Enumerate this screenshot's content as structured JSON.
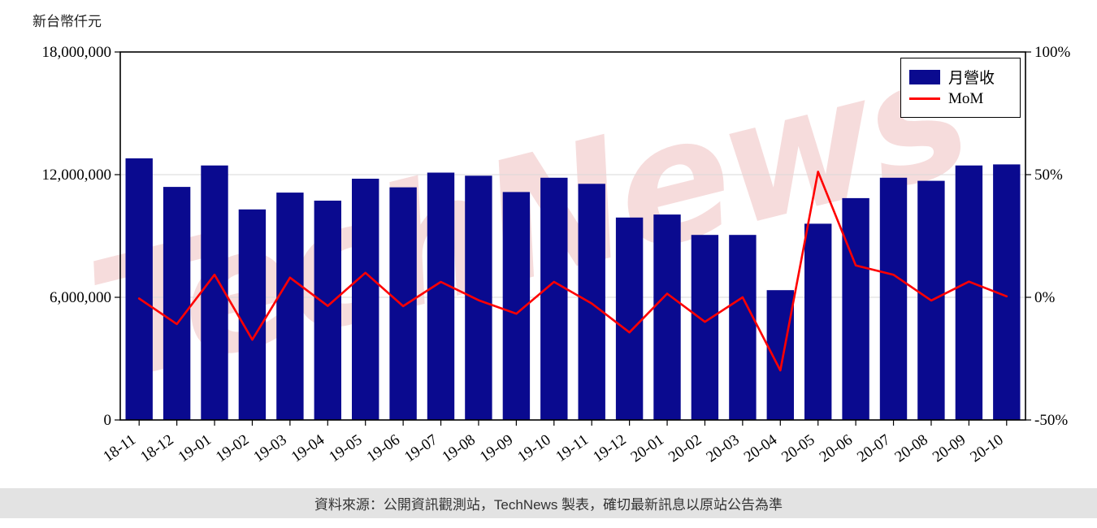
{
  "header": {
    "y_axis_title": "新台幣仟元"
  },
  "watermark": {
    "text": "TechNews",
    "color": "rgba(224,140,140,0.30)"
  },
  "legend": {
    "bar_label": "月營收",
    "line_label": "MoM"
  },
  "footer": {
    "text": "資料來源：公開資訊觀測站，TechNews 製表，確切最新訊息以原站公告為準"
  },
  "chart_data": {
    "type": "bar+line",
    "title": "",
    "categories": [
      "18-11",
      "18-12",
      "19-01",
      "19-02",
      "19-03",
      "19-04",
      "19-05",
      "19-06",
      "19-07",
      "19-08",
      "19-09",
      "19-10",
      "19-11",
      "19-12",
      "20-01",
      "20-02",
      "20-03",
      "20-04",
      "20-05",
      "20-06",
      "20-07",
      "20-08",
      "20-09",
      "20-10"
    ],
    "series": [
      {
        "name": "月營收",
        "type": "bar",
        "axis": "left",
        "color": "#0A0A8F",
        "values": [
          12800000,
          11400000,
          12450000,
          10300000,
          11120000,
          10730000,
          11800000,
          11380000,
          12100000,
          11950000,
          11150000,
          11850000,
          11550000,
          9900000,
          10050000,
          9050000,
          9050000,
          6350000,
          9600000,
          10850000,
          11850000,
          11700000,
          12450000,
          12500000
        ]
      },
      {
        "name": "MoM",
        "type": "line",
        "axis": "right",
        "color": "#FF0000",
        "unit": "%",
        "values": [
          -0.5,
          -10.9,
          9.2,
          -17.3,
          8.0,
          -3.5,
          10.0,
          -3.6,
          6.3,
          -1.2,
          -6.7,
          6.3,
          -2.5,
          -14.3,
          1.5,
          -10.0,
          0.0,
          -29.8,
          51.2,
          13.0,
          9.2,
          -1.3,
          6.4,
          0.4
        ]
      }
    ],
    "left_axis": {
      "title": "新台幣仟元",
      "min": 0,
      "max": 18000000,
      "ticks": [
        0,
        6000000,
        12000000,
        18000000
      ],
      "tick_labels": [
        "0",
        "6,000,000",
        "12,000,000",
        "18,000,000"
      ]
    },
    "right_axis": {
      "min": -50,
      "max": 100,
      "ticks": [
        -50,
        0,
        50,
        100
      ],
      "tick_labels": [
        "-50%",
        "0%",
        "50%",
        "100%"
      ]
    },
    "grid": true,
    "legend_position": "top-right"
  }
}
